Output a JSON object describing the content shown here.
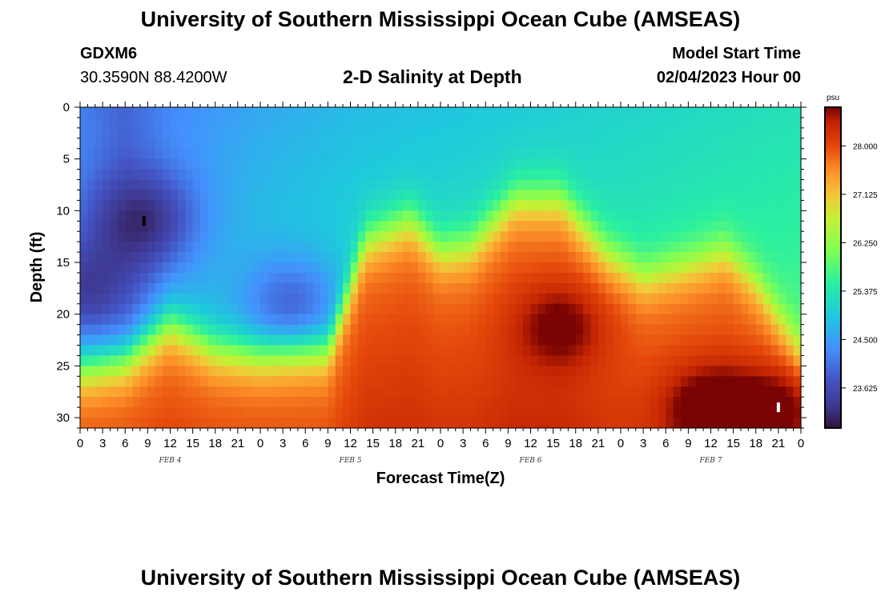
{
  "header": {
    "title": "University of Southern Mississippi Ocean Cube (AMSEAS)",
    "station": "GDXM6",
    "coords": "30.3590N  88.4200W",
    "subtitle": "2-D Salinity at Depth",
    "model_label": "Model Start Time",
    "model_time": "02/04/2023 Hour 00"
  },
  "footer": {
    "title": "University of Southern Mississippi Ocean Cube (AMSEAS)"
  },
  "chart_data": {
    "type": "heatmap",
    "title": "2-D Salinity at Depth",
    "xlabel": "Forecast Time(Z)",
    "ylabel": "Depth (ft)",
    "x_ticks": [
      "0",
      "3",
      "6",
      "9",
      "12",
      "15",
      "18",
      "21",
      "0",
      "3",
      "6",
      "9",
      "12",
      "15",
      "18",
      "21",
      "0",
      "3",
      "6",
      "9",
      "12",
      "15",
      "18",
      "21",
      "0",
      "3",
      "6",
      "9",
      "12",
      "15",
      "18",
      "21",
      "0"
    ],
    "x_range_hours": [
      0,
      96
    ],
    "day_labels": [
      {
        "label": "FEB 4",
        "hour": 12
      },
      {
        "label": "FEB 5",
        "hour": 36
      },
      {
        "label": "FEB 6",
        "hour": 60
      },
      {
        "label": "FEB 7",
        "hour": 84
      }
    ],
    "y_ticks": [
      "0",
      "5",
      "10",
      "15",
      "20",
      "25",
      "30"
    ],
    "ylim": [
      0,
      31
    ],
    "colorbar": {
      "unit": "psu",
      "min": 22.9,
      "max": 28.7,
      "ticks": [
        "28.000",
        "27.125",
        "26.250",
        "25.375",
        "24.500",
        "23.625"
      ]
    },
    "surface_values": [
      {
        "hour": 0,
        "value": 24.2
      },
      {
        "hour": 6,
        "value": 23.9
      },
      {
        "hour": 12,
        "value": 24.3
      },
      {
        "hour": 24,
        "value": 24.6
      },
      {
        "hour": 36,
        "value": 24.8
      },
      {
        "hour": 48,
        "value": 24.9
      },
      {
        "hour": 60,
        "value": 25.0
      },
      {
        "hour": 72,
        "value": 25.1
      },
      {
        "hour": 84,
        "value": 25.2
      },
      {
        "hour": 96,
        "value": 25.3
      }
    ],
    "halocline_depth_ft": [
      {
        "hour": 0,
        "depth": 25.5
      },
      {
        "hour": 6,
        "depth": 24.5
      },
      {
        "hour": 12,
        "depth": 21.0
      },
      {
        "hour": 18,
        "depth": 23.5
      },
      {
        "hour": 24,
        "depth": 24.2
      },
      {
        "hour": 33,
        "depth": 23.8
      },
      {
        "hour": 38,
        "depth": 13.0
      },
      {
        "hour": 44,
        "depth": 11.0
      },
      {
        "hour": 48,
        "depth": 14.0
      },
      {
        "hour": 52,
        "depth": 13.5
      },
      {
        "hour": 58,
        "depth": 9.0
      },
      {
        "hour": 64,
        "depth": 9.0
      },
      {
        "hour": 70,
        "depth": 14.0
      },
      {
        "hour": 75,
        "depth": 16.5
      },
      {
        "hour": 82,
        "depth": 15.0
      },
      {
        "hour": 86,
        "depth": 14.0
      },
      {
        "hour": 90,
        "depth": 17.0
      },
      {
        "hour": 96,
        "depth": 23.5
      }
    ],
    "fresh_cores": [
      {
        "hour": 8,
        "depth": 11,
        "value": 22.95
      },
      {
        "hour": 1,
        "depth": 18,
        "value": 23.05
      },
      {
        "hour": 28,
        "depth": 19.5,
        "value": 23.5
      }
    ],
    "salty_cores": [
      {
        "hour": 64,
        "depth": 21,
        "value": 28.5
      },
      {
        "hour": 84,
        "depth": 29,
        "value": 28.7
      },
      {
        "hour": 93,
        "depth": 29,
        "value": 28.6
      }
    ],
    "markers": [
      {
        "hour": 8.5,
        "depth": 11,
        "color": "#000000"
      },
      {
        "hour": 93,
        "depth": 29,
        "color": "#ffffff"
      }
    ]
  }
}
